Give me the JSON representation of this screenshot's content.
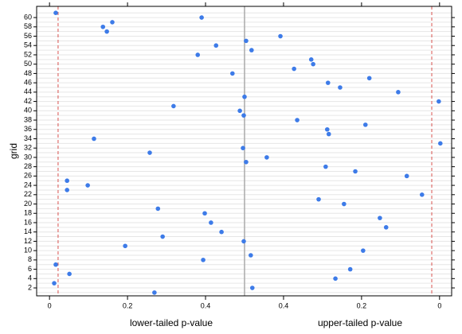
{
  "chart_data": {
    "type": "scatter",
    "y_label": "grid",
    "x_label_left": "lower-tailed p-value",
    "x_label_right": "upper-tailed p-value",
    "xlim": [
      -0.033,
      1.031
    ],
    "xticks": [
      0,
      0.2,
      0.4,
      {
        "value": 0.6,
        "label": "0.4"
      },
      {
        "value": 0.8,
        "label": "0.2"
      },
      {
        "value": 1,
        "label": "0"
      }
    ],
    "ylim": [
      0.3,
      62.4
    ],
    "yticks": [
      2,
      4,
      6,
      8,
      10,
      12,
      14,
      16,
      18,
      20,
      22,
      24,
      26,
      28,
      30,
      32,
      34,
      36,
      38,
      40,
      42,
      44,
      46,
      48,
      50,
      52,
      54,
      56,
      58,
      60
    ],
    "center_line": 0.5,
    "center_color": "#aaaaaa",
    "vlines": [
      0.022,
      0.98
    ],
    "vline_color": "#d9534f",
    "row_lines": true,
    "color": "#3d7be8",
    "series": [
      {
        "x": [
          0.269,
          0.52,
          0.012,
          0.733,
          0.051,
          0.771,
          0.016,
          0.394,
          0.516,
          0.804,
          0.194,
          0.498,
          0.29,
          0.441,
          0.863,
          0.414,
          0.847,
          0.398,
          0.278,
          0.755,
          0.69,
          0.955,
          0.045,
          0.098,
          0.045,
          0.916,
          0.784,
          0.708,
          0.504,
          0.557,
          0.257,
          0.496,
          1.002,
          0.114,
          0.716,
          0.712,
          0.81,
          0.635,
          0.498,
          0.488,
          0.318,
          0.998,
          0.5,
          0.894,
          0.745,
          0.714,
          0.82,
          0.469,
          0.627,
          0.676,
          0.671,
          0.38,
          0.518,
          0.427,
          0.504,
          0.592,
          0.147,
          0.137,
          0.161,
          0.39,
          0.016
        ],
        "y": [
          1,
          2,
          3,
          4,
          5,
          6,
          7,
          8,
          9,
          10,
          11,
          12,
          13,
          14,
          15,
          16,
          17,
          18,
          19,
          20,
          21,
          22,
          23,
          24,
          25,
          26,
          27,
          28,
          29,
          30,
          31,
          32,
          33,
          34,
          35,
          36,
          37,
          38,
          39,
          40,
          41,
          42,
          43,
          44,
          45,
          46,
          47,
          48,
          49,
          50,
          51,
          52,
          53,
          54,
          55,
          56,
          57,
          58,
          59,
          60,
          61
        ]
      }
    ]
  }
}
